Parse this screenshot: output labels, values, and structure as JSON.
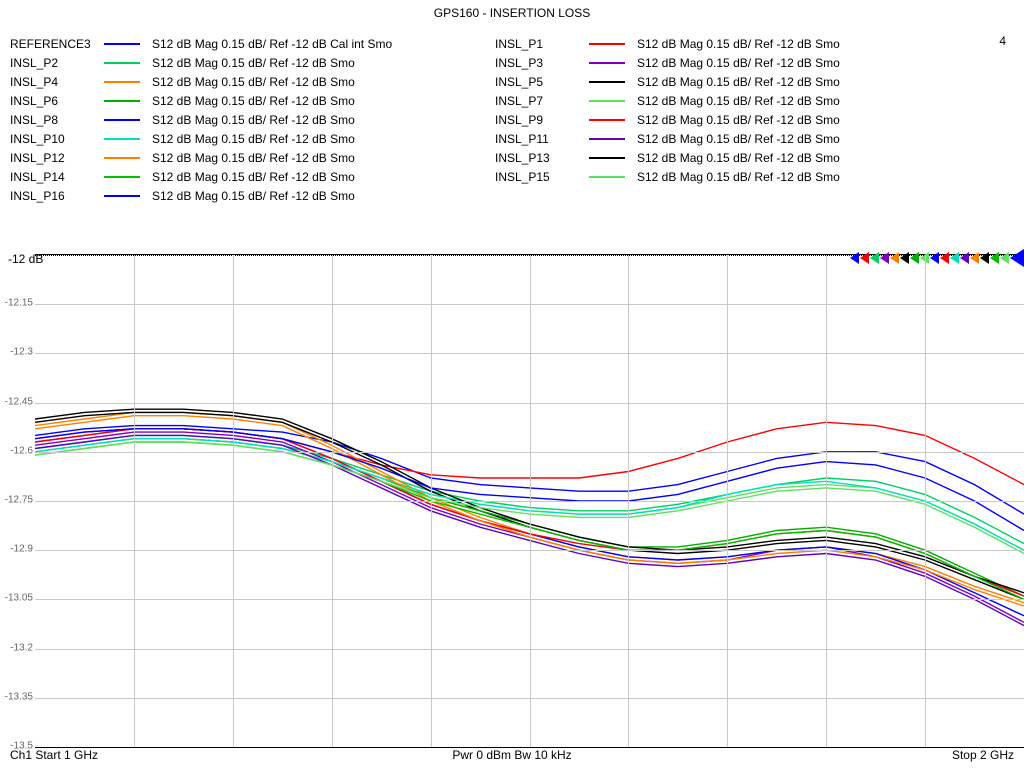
{
  "title": "GPS160 - INSERTION LOSS",
  "extra_label": "4",
  "legend_text_default": "S12  dB Mag  0.15 dB/ Ref -12 dB  Smo",
  "legend_text_ref": "S12  dB Mag  0.15 dB/ Ref -12 dB  Cal int Smo",
  "legend": [
    {
      "name": "REFERENCE3",
      "color": "#0000ff",
      "ref": true
    },
    {
      "name": "INSL_P1",
      "color": "#ff0000"
    },
    {
      "name": "INSL_P2",
      "color": "#00d060"
    },
    {
      "name": "INSL_P3",
      "color": "#8000c0"
    },
    {
      "name": "INSL_P4",
      "color": "#ff8000"
    },
    {
      "name": "INSL_P5",
      "color": "#000000"
    },
    {
      "name": "INSL_P6",
      "color": "#00b000"
    },
    {
      "name": "INSL_P7",
      "color": "#60e060"
    },
    {
      "name": "INSL_P8",
      "color": "#0000ff"
    },
    {
      "name": "INSL_P9",
      "color": "#ff0000"
    },
    {
      "name": "INSL_P10",
      "color": "#00e0c0"
    },
    {
      "name": "INSL_P11",
      "color": "#6000c0"
    },
    {
      "name": "INSL_P12",
      "color": "#ff8000"
    },
    {
      "name": "INSL_P13",
      "color": "#000000"
    },
    {
      "name": "INSL_P14",
      "color": "#00c000"
    },
    {
      "name": "INSL_P15",
      "color": "#60e060"
    },
    {
      "name": "INSL_P16",
      "color": "#0000ff"
    }
  ],
  "chart": {
    "type": "line",
    "background_color": "#ffffff",
    "grid_color": "#c8c8c8",
    "xlim": [
      1.0,
      2.0
    ],
    "x_grid_count": 10,
    "ylim": [
      -13.5,
      -12.0
    ],
    "ytick_step": 0.15,
    "yticks": [
      -12,
      -12.15,
      -12.3,
      -12.45,
      -12.6,
      -12.75,
      -12.9,
      -13.05,
      -13.2,
      -13.35,
      -13.5
    ],
    "ref_label": "-12 dB",
    "line_width": 1.4,
    "x_samples": [
      1.0,
      1.05,
      1.1,
      1.15,
      1.2,
      1.25,
      1.3,
      1.35,
      1.4,
      1.45,
      1.5,
      1.55,
      1.6,
      1.65,
      1.7,
      1.75,
      1.8,
      1.85,
      1.9,
      1.95,
      2.0
    ],
    "series": [
      {
        "color": "#0000ff",
        "y": [
          -12.55,
          -12.53,
          -12.52,
          -12.52,
          -12.53,
          -12.54,
          -12.57,
          -12.62,
          -12.68,
          -12.7,
          -12.71,
          -12.72,
          -12.72,
          -12.7,
          -12.66,
          -12.62,
          -12.6,
          -12.6,
          -12.63,
          -12.7,
          -12.79
        ]
      },
      {
        "color": "#ff0000",
        "y": [
          -12.56,
          -12.54,
          -12.53,
          -12.53,
          -12.54,
          -12.56,
          -12.6,
          -12.64,
          -12.67,
          -12.68,
          -12.68,
          -12.68,
          -12.66,
          -12.62,
          -12.57,
          -12.53,
          -12.51,
          -12.52,
          -12.55,
          -12.62,
          -12.7
        ]
      },
      {
        "color": "#00d060",
        "y": [
          -12.59,
          -12.57,
          -12.55,
          -12.55,
          -12.56,
          -12.58,
          -12.62,
          -12.67,
          -12.72,
          -12.75,
          -12.77,
          -12.78,
          -12.78,
          -12.76,
          -12.73,
          -12.7,
          -12.68,
          -12.69,
          -12.73,
          -12.8,
          -12.88
        ]
      },
      {
        "color": "#8000c0",
        "y": [
          -12.58,
          -12.56,
          -12.54,
          -12.54,
          -12.55,
          -12.57,
          -12.63,
          -12.7,
          -12.77,
          -12.82,
          -12.86,
          -12.9,
          -12.93,
          -12.94,
          -12.93,
          -12.9,
          -12.89,
          -12.92,
          -12.97,
          -13.04,
          -13.12
        ]
      },
      {
        "color": "#ff8000",
        "y": [
          -12.52,
          -12.5,
          -12.48,
          -12.48,
          -12.49,
          -12.51,
          -12.58,
          -12.66,
          -12.74,
          -12.8,
          -12.85,
          -12.89,
          -12.92,
          -12.93,
          -12.92,
          -12.9,
          -12.89,
          -12.91,
          -12.95,
          -13.01,
          -13.06
        ]
      },
      {
        "color": "#000000",
        "y": [
          -12.51,
          -12.49,
          -12.48,
          -12.48,
          -12.49,
          -12.51,
          -12.57,
          -12.64,
          -12.72,
          -12.78,
          -12.83,
          -12.87,
          -12.9,
          -12.91,
          -12.9,
          -12.88,
          -12.87,
          -12.89,
          -12.93,
          -12.99,
          -13.05
        ]
      },
      {
        "color": "#00b000",
        "y": [
          -12.6,
          -12.58,
          -12.56,
          -12.56,
          -12.57,
          -12.59,
          -12.63,
          -12.68,
          -12.74,
          -12.78,
          -12.82,
          -12.86,
          -12.89,
          -12.89,
          -12.87,
          -12.84,
          -12.83,
          -12.85,
          -12.9,
          -12.97,
          -13.04
        ]
      },
      {
        "color": "#60e060",
        "y": [
          -12.6,
          -12.58,
          -12.56,
          -12.56,
          -12.57,
          -12.59,
          -12.63,
          -12.68,
          -12.73,
          -12.76,
          -12.78,
          -12.79,
          -12.79,
          -12.77,
          -12.74,
          -12.71,
          -12.7,
          -12.71,
          -12.75,
          -12.82,
          -12.9
        ]
      },
      {
        "color": "#0000ff",
        "y": [
          -12.57,
          -12.55,
          -12.53,
          -12.53,
          -12.54,
          -12.56,
          -12.62,
          -12.69,
          -12.76,
          -12.81,
          -12.85,
          -12.89,
          -12.92,
          -12.93,
          -12.92,
          -12.9,
          -12.89,
          -12.91,
          -12.96,
          -13.03,
          -13.1
        ]
      },
      {
        "color": "#ff0000",
        "y": [
          -12.57,
          -12.55,
          -12.53,
          -12.53,
          -12.54,
          -12.56,
          -12.62,
          -12.69,
          -12.76,
          -12.81,
          -12.85,
          -12.88,
          -12.9,
          -12.9,
          -12.88,
          -12.85,
          -12.84,
          -12.86,
          -12.91,
          -12.98,
          -13.04
        ]
      },
      {
        "color": "#00e0c0",
        "y": [
          -12.6,
          -12.58,
          -12.56,
          -12.56,
          -12.57,
          -12.59,
          -12.63,
          -12.68,
          -12.73,
          -12.76,
          -12.78,
          -12.79,
          -12.79,
          -12.77,
          -12.73,
          -12.7,
          -12.69,
          -12.71,
          -12.75,
          -12.82,
          -12.9
        ]
      },
      {
        "color": "#6000c0",
        "y": [
          -12.59,
          -12.57,
          -12.55,
          -12.55,
          -12.56,
          -12.58,
          -12.64,
          -12.71,
          -12.78,
          -12.83,
          -12.87,
          -12.91,
          -12.94,
          -12.95,
          -12.94,
          -12.92,
          -12.91,
          -12.93,
          -12.98,
          -13.05,
          -13.13
        ]
      },
      {
        "color": "#ff8000",
        "y": [
          -12.53,
          -12.51,
          -12.49,
          -12.49,
          -12.5,
          -12.52,
          -12.59,
          -12.67,
          -12.75,
          -12.81,
          -12.86,
          -12.9,
          -12.93,
          -12.94,
          -12.93,
          -12.91,
          -12.9,
          -12.92,
          -12.96,
          -13.02,
          -13.07
        ]
      },
      {
        "color": "#000000",
        "y": [
          -12.5,
          -12.48,
          -12.47,
          -12.47,
          -12.48,
          -12.5,
          -12.56,
          -12.63,
          -12.71,
          -12.77,
          -12.82,
          -12.86,
          -12.89,
          -12.9,
          -12.89,
          -12.87,
          -12.86,
          -12.88,
          -12.92,
          -12.98,
          -13.03
        ]
      },
      {
        "color": "#00c000",
        "y": [
          -12.61,
          -12.59,
          -12.57,
          -12.57,
          -12.58,
          -12.6,
          -12.64,
          -12.69,
          -12.75,
          -12.79,
          -12.83,
          -12.87,
          -12.9,
          -12.9,
          -12.88,
          -12.85,
          -12.84,
          -12.86,
          -12.91,
          -12.98,
          -13.05
        ]
      },
      {
        "color": "#60e060",
        "y": [
          -12.61,
          -12.59,
          -12.57,
          -12.57,
          -12.58,
          -12.6,
          -12.64,
          -12.69,
          -12.74,
          -12.77,
          -12.79,
          -12.8,
          -12.8,
          -12.78,
          -12.75,
          -12.72,
          -12.71,
          -12.72,
          -12.76,
          -12.83,
          -12.91
        ]
      },
      {
        "color": "#0000ff",
        "y": [
          -12.56,
          -12.54,
          -12.53,
          -12.53,
          -12.54,
          -12.56,
          -12.6,
          -12.65,
          -12.71,
          -12.73,
          -12.74,
          -12.75,
          -12.75,
          -12.73,
          -12.69,
          -12.65,
          -12.63,
          -12.64,
          -12.68,
          -12.75,
          -12.84
        ]
      }
    ],
    "marker_colors": [
      "#0000ff",
      "#60e060",
      "#00c000",
      "#000000",
      "#ff8000",
      "#6000c0",
      "#00e0c0",
      "#ff0000",
      "#0000ff",
      "#60e060",
      "#00b000",
      "#000000",
      "#ff8000",
      "#8000c0",
      "#00d060",
      "#ff0000",
      "#0000ff"
    ]
  },
  "footer": {
    "left": "Ch1  Start  1 GHz",
    "center": "Pwr  0 dBm  Bw  10 kHz",
    "right": "Stop  2 GHz"
  }
}
